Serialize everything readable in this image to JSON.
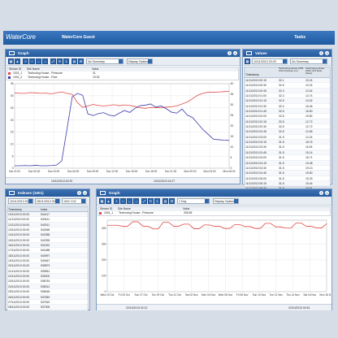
{
  "topbar": {
    "brand": "WaterCore",
    "org": "WaterCore Guest",
    "tasks": "Tasks"
  },
  "graph1": {
    "title": "Graph",
    "summary_value": "No Summary",
    "display_options": "Display Options",
    "legend_header": [
      "Stream ID",
      "Site Name",
      "Value"
    ],
    "legend_rows": [
      {
        "id": "1001_1",
        "site": "Technolog House - Pressure",
        "value": "31",
        "color": "#e24a4a"
      },
      {
        "id": "1001_2",
        "site": "Technolog House - Flow",
        "value": "19.52",
        "color": "#3a3aa8"
      }
    ],
    "footer_left": "10/11/2013 20:29",
    "footer_right": "10/11/2013 14:27",
    "chart_data": {
      "type": "line",
      "y_ticks": [
        0,
        5,
        10,
        15,
        20,
        25,
        30,
        35
      ],
      "y_ticks_right": [
        0,
        5,
        10,
        15,
        20,
        25,
        30,
        35,
        40
      ],
      "x_ticks": [
        "Sat 21:00",
        "Sun 00:00",
        "Sun 03:00",
        "Sun 06:00",
        "Sun 09:00",
        "Sun 12:00",
        "Sun 15:00",
        "Sun 18:00",
        "Sun 21:00",
        "Mon 00:00",
        "Mon 03:00",
        "Mon 06:00"
      ],
      "series": [
        {
          "name": "Technolog House - Pressure",
          "color": "#e24a4a",
          "values": [
            31.2,
            31.0,
            31.0,
            31.3,
            31.2,
            31.0,
            31.1,
            30.8,
            31.2,
            31.6,
            31.0,
            30.6,
            27.2,
            25.2,
            25.8,
            26.4,
            26.0,
            25.8,
            26.0,
            26.3,
            25.9,
            26.2,
            26.0,
            25.6,
            25.0,
            24.8,
            25.2,
            25.1,
            25.0,
            25.3,
            25.5,
            25.8,
            26.6,
            27.4,
            28.8,
            30.2,
            31.0,
            31.5,
            31.4,
            31.6,
            31.7,
            31.8
          ]
        },
        {
          "name": "Technolog House - Flow",
          "color": "#3a3aa8",
          "values": [
            1.0,
            1.0,
            1.1,
            1.0,
            1.2,
            1.0,
            1.0,
            1.1,
            1.3,
            3.0,
            16.0,
            29.5,
            31.0,
            30.2,
            22.5,
            21.8,
            22.6,
            23.0,
            22.0,
            21.6,
            22.8,
            23.9,
            23.1,
            24.8,
            25.9,
            26.1,
            26.6,
            25.3,
            25.8,
            24.6,
            23.2,
            22.8,
            24.5,
            22.0,
            21.0,
            18.5,
            16.0,
            14.0,
            12.0,
            11.8,
            11.6,
            11.5
          ]
        }
      ]
    }
  },
  "values_panel": {
    "title": "Values",
    "date_from": "10/11/2013 20:29",
    "summary_value": "No Summary",
    "col_timestamp": "Timestamp",
    "col_pressure": "Technolog House 1001 Ch1 Pressure (m)",
    "col_flow": "Technolog House 1001 Ch2 Flow (l/sec)",
    "rows": [
      [
        "11/11/2013 00:15",
        "32.1",
        "19.24"
      ],
      [
        "11/11/2013 00:30",
        "32.5",
        "10.24"
      ],
      [
        "11/11/2013 00:45",
        "32.3",
        "12.04"
      ],
      [
        "11/11/2013 01:00",
        "32.3",
        "14.74"
      ],
      [
        "11/11/2013 01:15",
        "32.5",
        "14.32"
      ],
      [
        "11/11/2013 01:30",
        "32.4",
        "16.46"
      ],
      [
        "11/11/2013 01:45",
        "32.5",
        "16.50"
      ],
      [
        "11/11/2013 02:00",
        "32.5",
        "19.82"
      ],
      [
        "11/11/2013 02:15",
        "32.5",
        "12.72"
      ],
      [
        "11/11/2013 02:30",
        "32.5",
        "12.72"
      ],
      [
        "11/11/2013 02:45",
        "32.5",
        "12.65"
      ],
      [
        "11/11/2013 03:00",
        "31.5",
        "12.24"
      ],
      [
        "11/11/2013 03:15",
        "31.5",
        "18.76"
      ],
      [
        "11/11/2013 03:30",
        "31.5",
        "16.94"
      ],
      [
        "11/11/2013 03:45",
        "31.5",
        "15.14"
      ],
      [
        "11/11/2013 04:00",
        "31.5",
        "15.71"
      ],
      [
        "11/11/2013 04:15",
        "31.5",
        "19.48"
      ],
      [
        "11/11/2013 04:30",
        "31.5",
        "19.13"
      ],
      [
        "11/11/2013 04:45",
        "31.5",
        "19.50"
      ],
      [
        "11/11/2013 05:00",
        "31.5",
        "19.33"
      ],
      [
        "11/11/2013 05:15",
        "31.5",
        "19.44"
      ],
      [
        "11/11/2013 05:30",
        "31.5",
        "19.91"
      ],
      [
        "11/11/2013 05:45",
        "31.5",
        "19.84"
      ],
      [
        "11/11/2013 06:00",
        "31.5",
        "19.52"
      ]
    ]
  },
  "indexes": {
    "title": "Indexes (1001)",
    "date_from": "10/11/2013 00:00",
    "date_to": "28/11/2013 00:00",
    "channel": "1001 Ch2",
    "col_timestamp": "Timestamp",
    "col_index": "Index",
    "rows": [
      [
        "10/11/2013 00:00",
        "544117"
      ],
      [
        "11/11/2013 00:00",
        "543411"
      ],
      [
        "12/11/2013 00:00",
        "543011"
      ],
      [
        "13/11/2013 00:00",
        "542465"
      ],
      [
        "14/11/2013 00:00",
        "542288"
      ],
      [
        "15/11/2013 00:00",
        "542255"
      ],
      [
        "16/11/2013 00:00",
        "541922"
      ],
      [
        "17/11/2013 00:00",
        "541488"
      ],
      [
        "18/11/2013 00:00",
        "540997"
      ],
      [
        "19/11/2013 00:00",
        "540467"
      ],
      [
        "20/11/2013 00:00",
        "539873"
      ],
      [
        "21/11/2013 00:00",
        "539551"
      ],
      [
        "22/11/2013 00:00",
        "539200"
      ],
      [
        "23/11/2013 00:00",
        "538745"
      ],
      [
        "24/11/2013 00:00",
        "538312"
      ],
      [
        "25/11/2013 00:00",
        "538165"
      ],
      [
        "26/11/2013 00:00",
        "537849"
      ],
      [
        "27/11/2013 00:00",
        "537520"
      ],
      [
        "28/11/2013 00:00",
        "537305"
      ]
    ]
  },
  "graph2": {
    "title": "Graph",
    "period_value": "1 Day",
    "display_options": "Display Options",
    "legend_header": [
      "Stream ID",
      "Site Name",
      "Value"
    ],
    "legend_rows": [
      {
        "id": "1001_1",
        "site": "Technolog House - Pressure",
        "value": "305.55",
        "color": "#e24a4a"
      }
    ],
    "footer_left": "22/10/2013 02:12",
    "footer_right": "22/10/2013 00:51",
    "chart_data": {
      "type": "line",
      "y_ticks": [
        0,
        100,
        200,
        300,
        400
      ],
      "x_ticks": [
        "Wed 23 Oct",
        "Fri 25 Oct",
        "Sun 27 Oct",
        "Tue 29 Oct",
        "Thu 31 Oct",
        "Sat 02 Nov",
        "Mon 04 Nov",
        "Wed 06 Nov",
        "Fri 08 Nov",
        "Sun 10 Nov",
        "Tue 12 Nov",
        "Thu 14 Nov",
        "Sat 16 Nov",
        "Mon 18 Nov"
      ],
      "series": [
        {
          "name": "Technolog House - Pressure",
          "color": "#e24a4a",
          "values": [
            418,
            418,
            418,
            412,
            412,
            440,
            440,
            412,
            412,
            395,
            395,
            438,
            438,
            412,
            412,
            425,
            425,
            396,
            396,
            420,
            420,
            412,
            412,
            398,
            398,
            422,
            422,
            410,
            410,
            398,
            398,
            430,
            430,
            408,
            408,
            400,
            400,
            432,
            432,
            412,
            412,
            401,
            401,
            428
          ]
        }
      ]
    }
  }
}
